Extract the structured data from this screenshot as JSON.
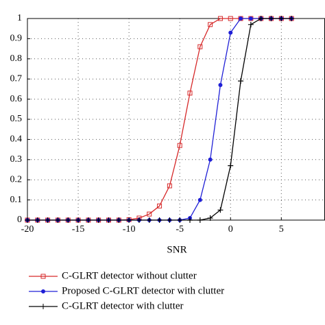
{
  "chart_data": {
    "type": "line",
    "x_label": "SNR",
    "x": [
      -20,
      -19,
      -18,
      -17,
      -16,
      -15,
      -14,
      -13,
      -12,
      -11,
      -10,
      -9,
      -8,
      -7,
      -6,
      -5,
      -4,
      -3,
      -2,
      -1,
      0,
      1,
      2,
      3,
      4,
      5,
      6
    ],
    "series": [
      {
        "name": "C-GLRT detector without clutter",
        "color": "#d62728",
        "marker": "square",
        "values": [
          0,
          0,
          0,
          0,
          0,
          0,
          0,
          0,
          0,
          0,
          0.002,
          0.01,
          0.03,
          0.07,
          0.17,
          0.37,
          0.63,
          0.86,
          0.97,
          1,
          1,
          1,
          1,
          1,
          1,
          1,
          1
        ]
      },
      {
        "name": "Proposed C-GLRT detector with clutter",
        "color": "#1f1fd6",
        "marker": "circle",
        "values": [
          0,
          0,
          0,
          0,
          0,
          0,
          0,
          0,
          0,
          0,
          0,
          0,
          0,
          0,
          0,
          0,
          0.01,
          0.1,
          0.3,
          0.67,
          0.93,
          1,
          1,
          1,
          1,
          1,
          1
        ]
      },
      {
        "name": "C-GLRT detector with clutter",
        "color": "#000000",
        "marker": "plus",
        "values": [
          0,
          0,
          0,
          0,
          0,
          0,
          0,
          0,
          0,
          0,
          0,
          0,
          0,
          0,
          0,
          0,
          0,
          0,
          0.01,
          0.05,
          0.27,
          0.69,
          0.97,
          1,
          1,
          1,
          1
        ]
      }
    ],
    "xlim": [
      -20,
      9.3
    ],
    "xticks": [
      -20,
      -15,
      -10,
      -5,
      0,
      5
    ],
    "ylim": [
      0,
      1
    ],
    "yticks": [
      0,
      0.1,
      0.2,
      0.3,
      0.4,
      0.5,
      0.6,
      0.7,
      0.8,
      0.9,
      1
    ],
    "grid": true,
    "legend": "bottom"
  }
}
